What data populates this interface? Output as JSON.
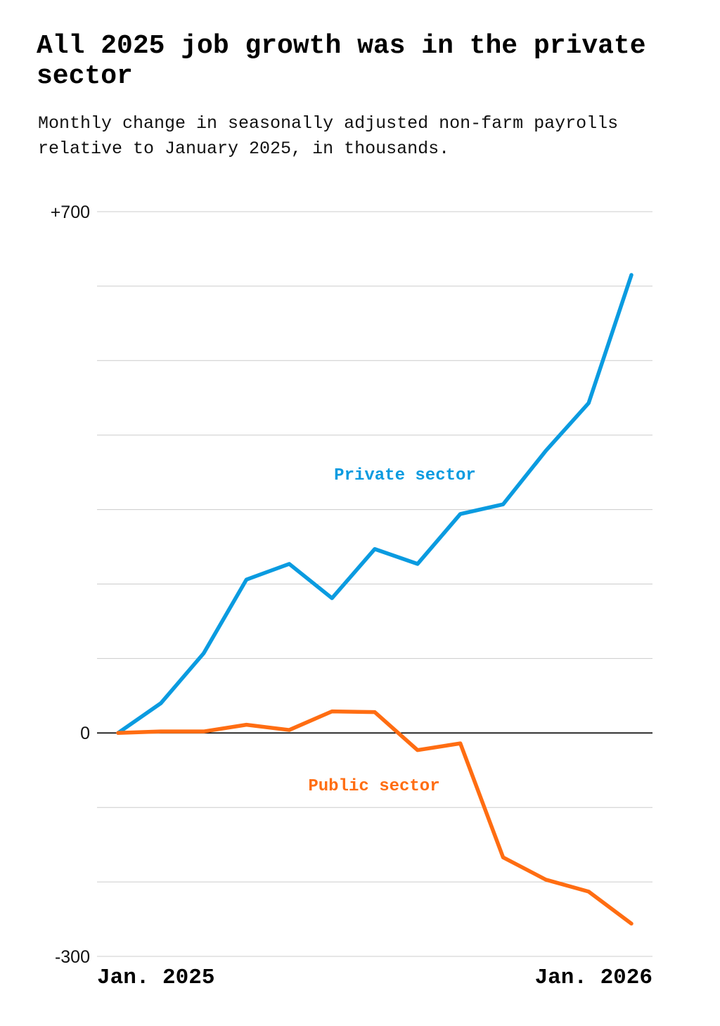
{
  "chart_data": {
    "type": "line",
    "title": "All 2025 job growth was in the private sector",
    "subtitle": "Monthly change in seasonally adjusted non-farm payrolls relative to January 2025, in thousands.",
    "x": [
      "2025-01",
      "2025-02",
      "2025-03",
      "2025-04",
      "2025-05",
      "2025-06",
      "2025-07",
      "2025-08",
      "2025-09",
      "2025-10",
      "2025-11",
      "2025-12",
      "2026-01"
    ],
    "x_tick_labels": [
      "Jan. 2025",
      "Jan. 2026"
    ],
    "y_tick_labels": [
      "+700",
      "0",
      "-300"
    ],
    "ylim": [
      -300,
      700
    ],
    "grid": true,
    "grid_step": 100,
    "series": [
      {
        "name": "Private sector",
        "color": "#0a9be0",
        "values": [
          0,
          40,
          107,
          206,
          227,
          181,
          247,
          227,
          294,
          307,
          379,
          443,
          615
        ]
      },
      {
        "name": "Public sector",
        "color": "#ff6d12",
        "values": [
          0,
          2,
          2,
          11,
          4,
          29,
          28,
          -23,
          -14,
          -167,
          -197,
          -213,
          -256
        ]
      }
    ]
  }
}
